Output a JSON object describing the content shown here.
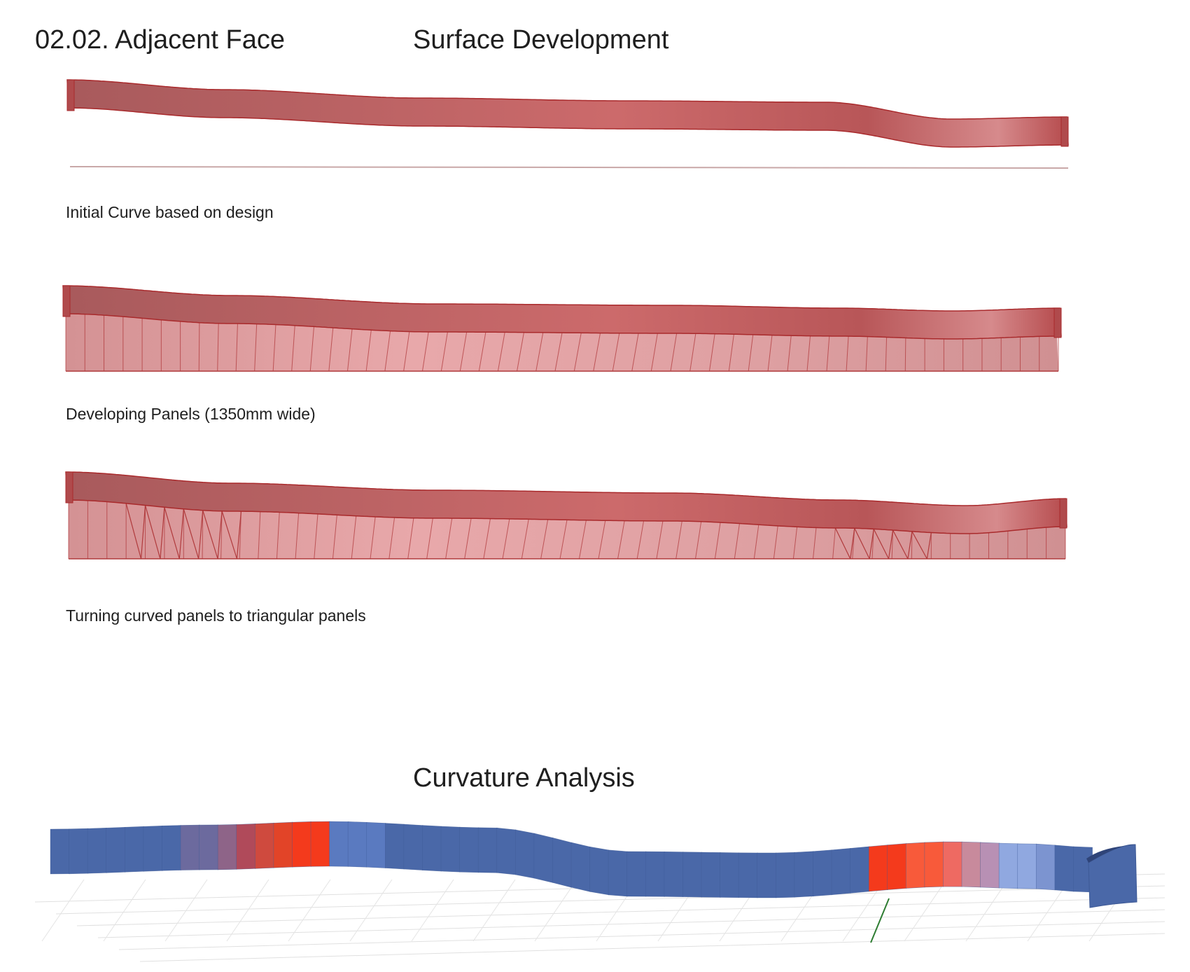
{
  "page": {
    "section_title": "02.02. Adjacent Face",
    "main_title": "Surface Development",
    "analysis_title": "Curvature Analysis"
  },
  "steps": [
    {
      "caption": "Initial Curve based on design"
    },
    {
      "caption": "Developing Panels (1350mm wide)"
    },
    {
      "caption": "Turning curved panels to triangular panels"
    }
  ],
  "colors": {
    "ribbon": "#c25a5c",
    "ribbon_edge": "#a92a2c",
    "panel_fill": "#e2a2a4",
    "panel_line": "#b03a3c",
    "curvature_low": "#4a68a8",
    "curvature_high": "#f43a1c",
    "curvature_mid": "#b890b4"
  }
}
